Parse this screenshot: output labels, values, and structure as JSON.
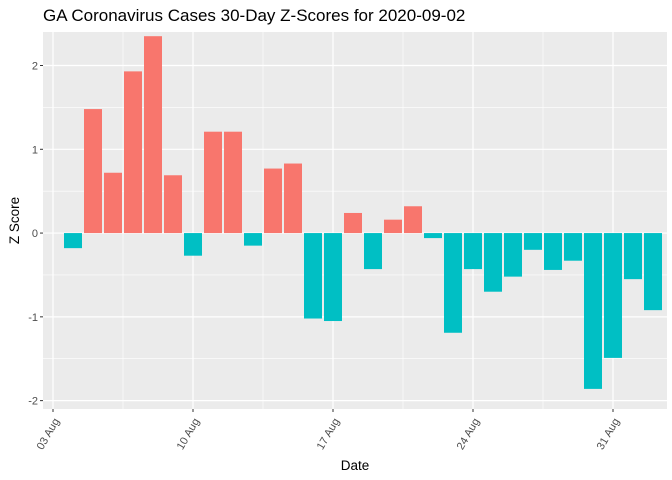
{
  "chart_data": {
    "type": "bar",
    "title": "GA Coronavirus Cases 30-Day Z-Scores for 2020-09-02",
    "xlabel": "Date",
    "ylabel": "Z Score",
    "x_start": "2020-08-03",
    "x_end": "2020-09-02",
    "x_range_days": [
      -0.5,
      30.7
    ],
    "ylim": [
      -2.1,
      2.4
    ],
    "y_ticks": [
      -2,
      -1,
      0,
      1,
      2
    ],
    "x_tick_labels": [
      "03 Aug",
      "10 Aug",
      "17 Aug",
      "24 Aug",
      "31 Aug"
    ],
    "x_tick_days": [
      0,
      7,
      14,
      21,
      28
    ],
    "positive_color": "#F8766D",
    "negative_color": "#00BFC4",
    "panel_color": "#EBEBEB",
    "grid_color": "#FFFFFF",
    "dates": [
      "2020-08-04",
      "2020-08-05",
      "2020-08-06",
      "2020-08-07",
      "2020-08-08",
      "2020-08-09",
      "2020-08-10",
      "2020-08-11",
      "2020-08-12",
      "2020-08-13",
      "2020-08-14",
      "2020-08-15",
      "2020-08-16",
      "2020-08-17",
      "2020-08-18",
      "2020-08-19",
      "2020-08-20",
      "2020-08-21",
      "2020-08-22",
      "2020-08-23",
      "2020-08-24",
      "2020-08-25",
      "2020-08-26",
      "2020-08-27",
      "2020-08-28",
      "2020-08-29",
      "2020-08-30",
      "2020-08-31",
      "2020-09-01",
      "2020-09-02"
    ],
    "day_index": [
      1,
      2,
      3,
      4,
      5,
      6,
      7,
      8,
      9,
      10,
      11,
      12,
      13,
      14,
      15,
      16,
      17,
      18,
      19,
      20,
      21,
      22,
      23,
      24,
      25,
      26,
      27,
      28,
      29,
      30
    ],
    "values": [
      -0.18,
      1.48,
      0.72,
      1.93,
      2.35,
      0.69,
      -0.27,
      1.21,
      1.21,
      -0.15,
      0.77,
      0.83,
      -1.02,
      -1.05,
      0.24,
      -0.43,
      0.16,
      0.32,
      -0.06,
      -1.19,
      -0.43,
      -0.7,
      -0.52,
      -0.2,
      -0.44,
      -0.33,
      -1.86,
      -1.49,
      -0.55,
      -0.92
    ]
  }
}
